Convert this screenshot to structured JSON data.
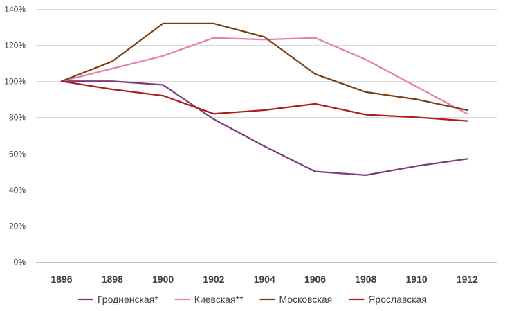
{
  "chart_data": {
    "type": "line",
    "title": "",
    "xlabel": "",
    "ylabel": "",
    "categories": [
      "1896",
      "1898",
      "1900",
      "1902",
      "1904",
      "1906",
      "1908",
      "1910",
      "1912"
    ],
    "ylim": [
      0,
      140
    ],
    "yticks": [
      0,
      20,
      40,
      60,
      80,
      100,
      120,
      140
    ],
    "y_tick_suffix": "%",
    "grid": true,
    "legend_position": "bottom",
    "series": [
      {
        "name": "Гродненская*",
        "color": "#7b3a7b",
        "values": [
          100,
          100,
          98,
          79,
          64,
          50,
          48,
          53,
          57
        ]
      },
      {
        "name": "Киевская**",
        "color": "#e57fae",
        "values": [
          100,
          107,
          114,
          124,
          123,
          124,
          112,
          97,
          82
        ]
      },
      {
        "name": "Московская",
        "color": "#7a3f12",
        "values": [
          100,
          111,
          132,
          132,
          124.5,
          104,
          94,
          90,
          84
        ]
      },
      {
        "name": "Ярославская",
        "color": "#b01c1c",
        "values": [
          100,
          95.5,
          92,
          82,
          84,
          87.5,
          81.5,
          80,
          78
        ]
      }
    ]
  }
}
